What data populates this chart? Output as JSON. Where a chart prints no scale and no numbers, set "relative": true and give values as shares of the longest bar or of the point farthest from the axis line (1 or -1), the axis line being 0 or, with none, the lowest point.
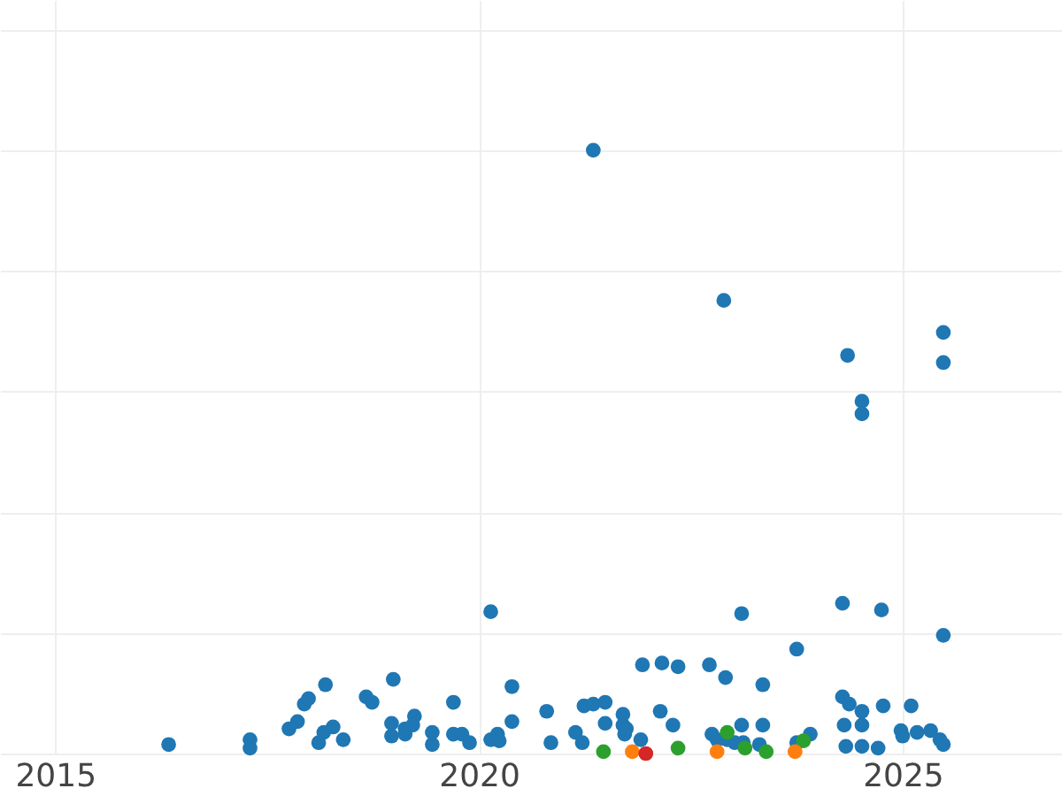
{
  "chart_data": {
    "type": "scatter",
    "relative": true,
    "xlim": [
      2014.35,
      2026.88
    ],
    "xticks": [
      2015,
      2020,
      2025
    ],
    "grid": true,
    "marker": "circle",
    "tick_labels": "x",
    "series": [
      {
        "color": "#1f77b4",
        "x": [
          2016.34,
          2017.3,
          2017.3,
          2017.76,
          2017.86,
          2017.94,
          2017.99,
          2018.11,
          2018.19,
          2018.17,
          2018.28,
          2018.4,
          2018.67,
          2018.74,
          2018.99,
          2018.97,
          2018.97,
          2019.13,
          2019.13,
          2019.24,
          2019.22,
          2019.45,
          2019.45,
          2019.7,
          2019.7,
          2019.8,
          2019.89,
          2020.14,
          2020.14,
          2020.22,
          2020.24,
          2020.39,
          2020.39,
          2020.8,
          2020.85,
          2021.14,
          2021.22,
          2021.24,
          2021.35,
          2021.35,
          2021.49,
          2021.49,
          2021.7,
          2021.7,
          2021.72,
          2021.74,
          2021.91,
          2021.93,
          2022.14,
          2022.16,
          2022.29,
          2022.35,
          2022.72,
          2022.75,
          2022.89,
          2022.91,
          2022.81,
          2022.93,
          2023.02,
          2023.1,
          2023.12,
          2023.31,
          2023.35,
          2023.35,
          2023.75,
          2023.75,
          2023.91,
          2024.29,
          2024.29,
          2024.31,
          2024.33,
          2024.35,
          2024.37,
          2024.52,
          2024.52,
          2024.52,
          2024.52,
          2024.52,
          2024.71,
          2024.75,
          2024.77,
          2024.98,
          2025.0,
          2025.1,
          2025.17,
          2025.33,
          2025.44,
          2025.48,
          2025.48,
          2025.48,
          2025.48,
          2023.1
        ],
        "values": [
          0.015,
          0.023,
          0.009,
          0.041,
          0.053,
          0.082,
          0.091,
          0.018,
          0.114,
          0.035,
          0.044,
          0.023,
          0.094,
          0.085,
          0.123,
          0.05,
          0.029,
          0.032,
          0.041,
          0.062,
          0.047,
          0.035,
          0.015,
          0.085,
          0.032,
          0.032,
          0.018,
          0.235,
          0.023,
          0.032,
          0.021,
          0.111,
          0.053,
          0.07,
          0.018,
          0.035,
          0.018,
          0.079,
          0.082,
          1,
          0.085,
          0.05,
          0.065,
          0.047,
          0.032,
          0.041,
          0.023,
          0.147,
          0.07,
          0.15,
          0.047,
          0.144,
          0.147,
          0.032,
          0.751,
          0.126,
          0.023,
          0.023,
          0.018,
          0.232,
          0.018,
          0.015,
          0.114,
          0.047,
          0.173,
          0.018,
          0.032,
          0.249,
          0.094,
          0.047,
          0.012,
          0.66,
          0.082,
          0.047,
          0.584,
          0.563,
          0.07,
          0.012,
          0.009,
          0.238,
          0.079,
          0.038,
          0.029,
          0.079,
          0.035,
          0.038,
          0.023,
          0.015,
          0.698,
          0.648,
          0.196,
          0.047
        ]
      },
      {
        "color": "#2ca02c",
        "x": [
          2021.47,
          2022.35,
          2022.93,
          2023.14,
          2023.39,
          2023.83
        ],
        "values": [
          0.003,
          0.009,
          0.035,
          0.009,
          0.003,
          0.021
        ]
      },
      {
        "color": "#ff7f0e",
        "x": [
          2021.81,
          2022.81,
          2023.73
        ],
        "values": [
          0.003,
          0.003,
          0.003
        ]
      },
      {
        "color": "#d62728",
        "x": [
          2021.97
        ],
        "values": [
          0
        ]
      }
    ]
  }
}
